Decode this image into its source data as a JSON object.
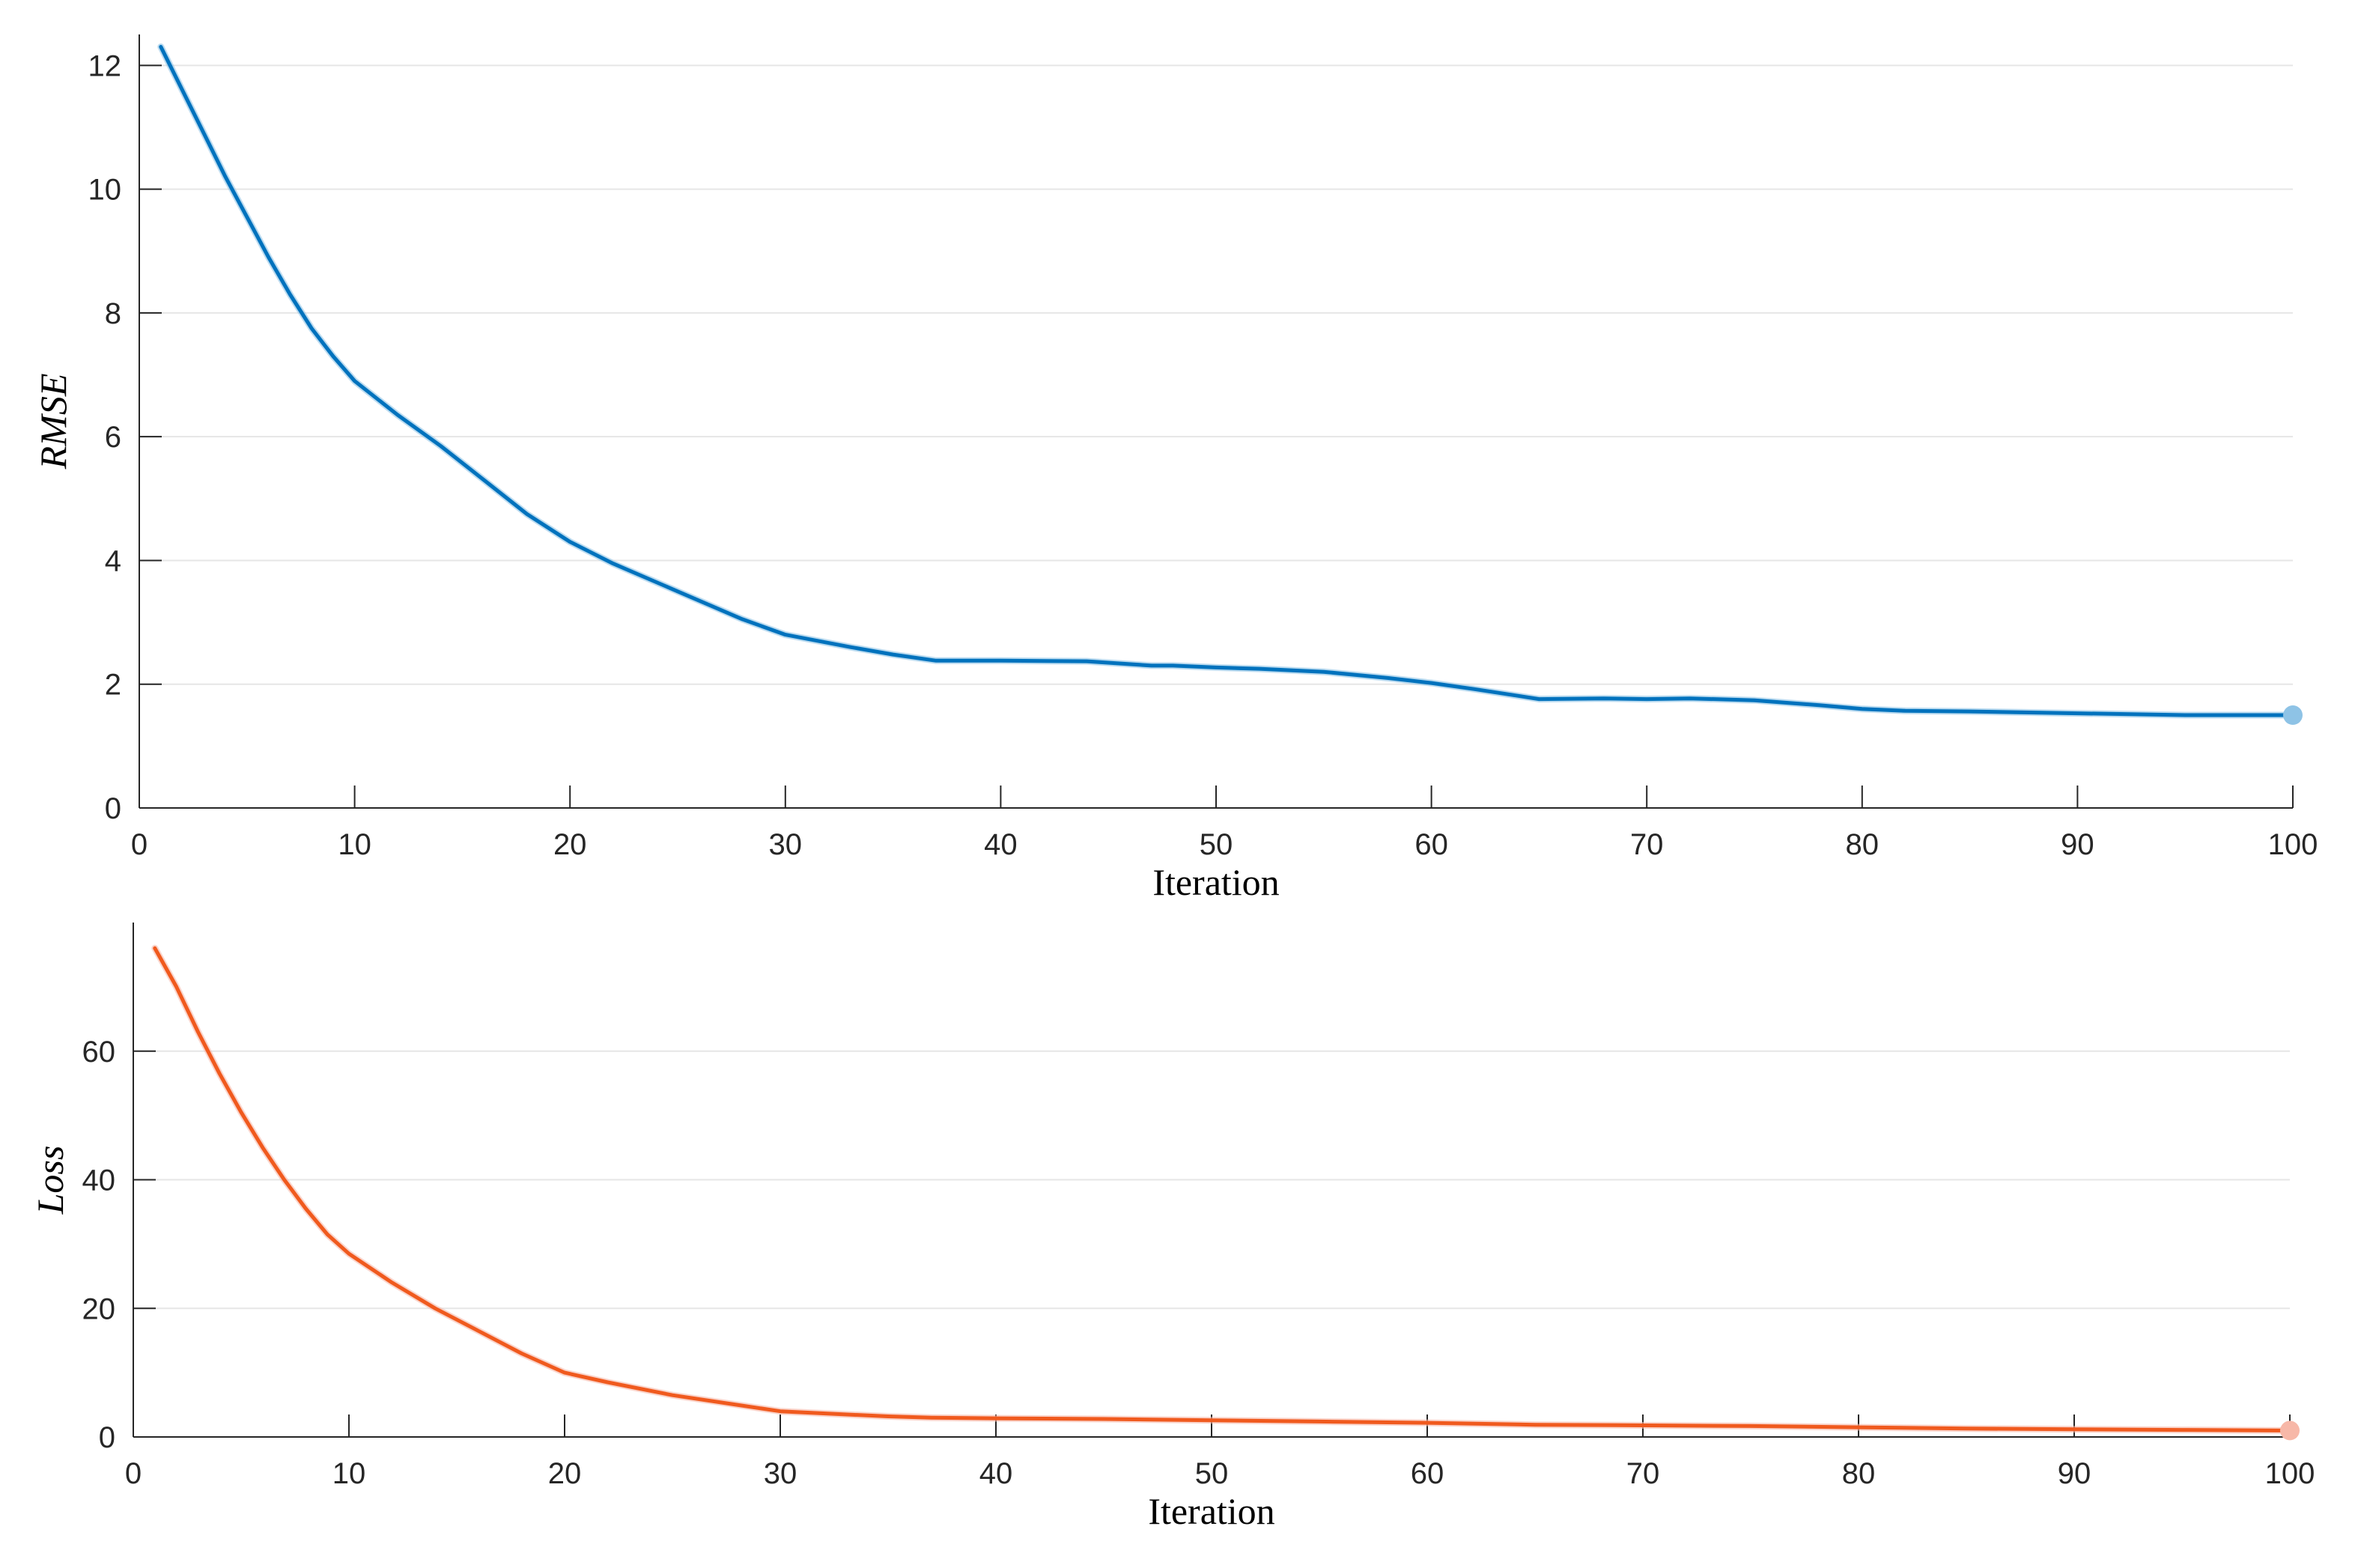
{
  "chart_data": [
    {
      "type": "line",
      "xlabel": "Iteration",
      "ylabel": "RMSE",
      "xlim": [
        0,
        100
      ],
      "ylim": [
        0,
        12.5
      ],
      "xticks": [
        0,
        10,
        20,
        30,
        40,
        50,
        60,
        70,
        80,
        90,
        100
      ],
      "yticks": [
        0,
        2,
        4,
        6,
        8,
        10,
        12
      ],
      "grid": "horizontal",
      "color": "#0072BD",
      "marker_color": "#8ec3e6",
      "series": [
        {
          "x": [
            1,
            2,
            3,
            4,
            5,
            6,
            7,
            8,
            9,
            10,
            12,
            14,
            16,
            18,
            20,
            22,
            25,
            28,
            30,
            33,
            35,
            37,
            40,
            44,
            47,
            48,
            50,
            52,
            55,
            58,
            60,
            62,
            65,
            68,
            70,
            72,
            75,
            78,
            80,
            82,
            85,
            90,
            95,
            100
          ],
          "y": [
            12.3,
            11.6,
            10.9,
            10.2,
            9.55,
            8.9,
            8.3,
            7.75,
            7.3,
            6.9,
            6.35,
            5.85,
            5.3,
            4.75,
            4.3,
            3.95,
            3.5,
            3.05,
            2.8,
            2.6,
            2.48,
            2.38,
            2.38,
            2.37,
            2.3,
            2.3,
            2.27,
            2.25,
            2.2,
            2.1,
            2.02,
            1.92,
            1.76,
            1.77,
            1.76,
            1.77,
            1.74,
            1.66,
            1.6,
            1.57,
            1.56,
            1.53,
            1.5,
            1.5
          ]
        }
      ]
    },
    {
      "type": "line",
      "xlabel": "Iteration",
      "ylabel": "Loss",
      "xlim": [
        0,
        100
      ],
      "ylim": [
        0,
        80
      ],
      "xticks": [
        0,
        10,
        20,
        30,
        40,
        50,
        60,
        70,
        80,
        90,
        100
      ],
      "yticks": [
        0,
        20,
        40,
        60
      ],
      "grid": "horizontal",
      "color": "#f05a1e",
      "marker_color": "#f7b8a8",
      "series": [
        {
          "x": [
            1,
            2,
            3,
            4,
            5,
            6,
            7,
            8,
            9,
            10,
            12,
            14,
            16,
            18,
            20,
            22,
            25,
            28,
            30,
            33,
            35,
            37,
            40,
            45,
            50,
            55,
            60,
            65,
            70,
            75,
            80,
            85,
            90,
            95,
            100
          ],
          "y": [
            76,
            70,
            63,
            56.5,
            50.5,
            45,
            40,
            35.5,
            31.5,
            28.5,
            24,
            20,
            16.5,
            13,
            10,
            8.5,
            6.5,
            5,
            4,
            3.5,
            3.2,
            3,
            2.9,
            2.8,
            2.6,
            2.4,
            2.2,
            1.9,
            1.8,
            1.7,
            1.5,
            1.3,
            1.2,
            1.1,
            1
          ]
        }
      ]
    }
  ]
}
